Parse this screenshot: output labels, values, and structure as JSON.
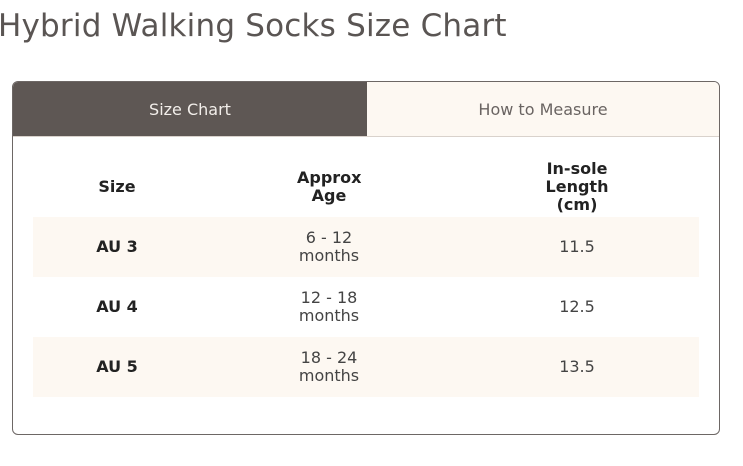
{
  "header": {
    "title": "Hybrid Walking Socks Size Chart"
  },
  "tabs": [
    "Size Chart",
    "How to Measure"
  ],
  "table": {
    "columns": [
      "Size",
      "Approx Age",
      "In-sole Length (cm)"
    ],
    "rows": [
      [
        "AU 3",
        "6 - 12 months",
        "11.5"
      ],
      [
        "AU 4",
        "12 - 18 months",
        "12.5"
      ],
      [
        "AU 5",
        "18 - 24 months",
        "13.5"
      ]
    ]
  }
}
